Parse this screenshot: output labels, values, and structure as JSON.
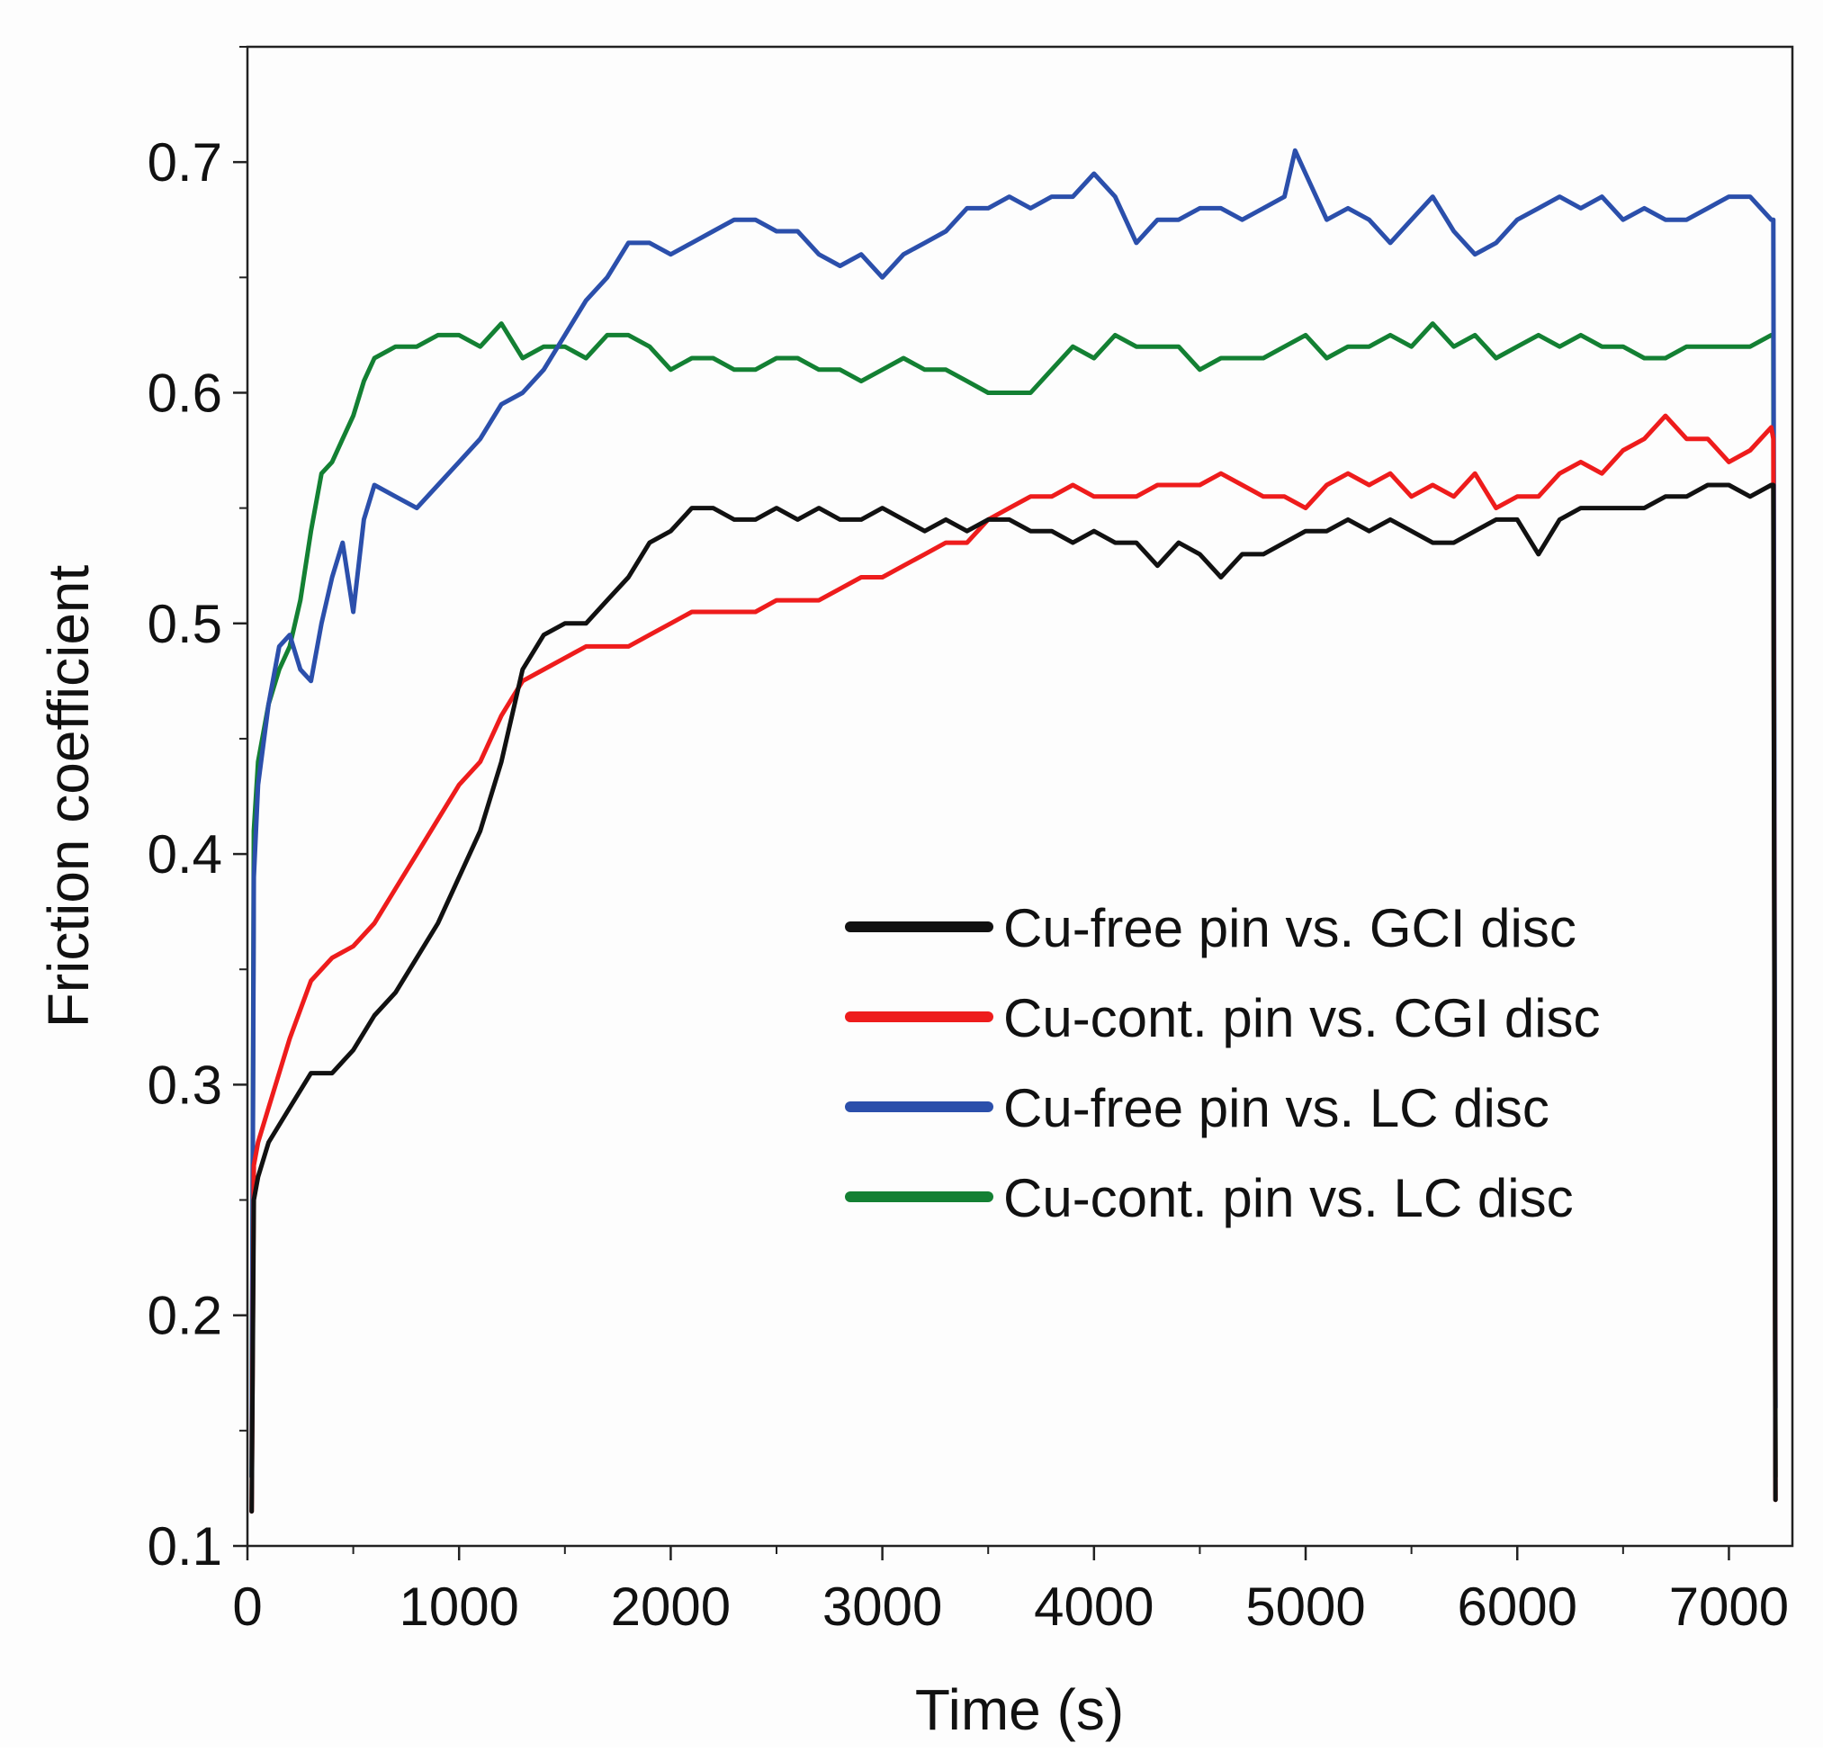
{
  "chart_data": {
    "type": "line",
    "title": "",
    "xlabel": "Time (s)",
    "ylabel": "Friction coefficient",
    "xlim": [
      0,
      7300
    ],
    "ylim": [
      0.1,
      0.75
    ],
    "xticks": [
      0,
      1000,
      2000,
      3000,
      4000,
      5000,
      6000,
      7000
    ],
    "xtick_labels": [
      "0",
      "1000",
      "2000",
      "3000",
      "4000",
      "5000",
      "6000",
      "7000"
    ],
    "yticks": [
      0.1,
      0.2,
      0.3,
      0.4,
      0.5,
      0.6,
      0.7
    ],
    "ytick_labels": [
      "0.1",
      "0.2",
      "0.3",
      "0.4",
      "0.5",
      "0.6",
      "0.7"
    ],
    "grid": false,
    "legend_position": "center-right",
    "series": [
      {
        "name": "Cu-free pin vs. GCI disc",
        "color": "#111111",
        "x": [
          20,
          30,
          50,
          100,
          200,
          300,
          400,
          500,
          600,
          700,
          800,
          900,
          1000,
          1100,
          1200,
          1300,
          1400,
          1500,
          1600,
          1700,
          1800,
          1900,
          2000,
          2100,
          2200,
          2300,
          2400,
          2500,
          2600,
          2700,
          2800,
          2900,
          3000,
          3100,
          3200,
          3300,
          3400,
          3500,
          3600,
          3700,
          3800,
          3900,
          4000,
          4100,
          4200,
          4300,
          4400,
          4500,
          4600,
          4700,
          4800,
          4900,
          5000,
          5100,
          5200,
          5300,
          5400,
          5500,
          5600,
          5700,
          5800,
          5900,
          6000,
          6100,
          6200,
          6300,
          6400,
          6500,
          6600,
          6700,
          6800,
          6900,
          7000,
          7100,
          7200,
          7210,
          7220
        ],
        "y": [
          0.115,
          0.25,
          0.26,
          0.275,
          0.29,
          0.305,
          0.305,
          0.315,
          0.33,
          0.34,
          0.355,
          0.37,
          0.39,
          0.41,
          0.44,
          0.48,
          0.495,
          0.5,
          0.5,
          0.51,
          0.52,
          0.535,
          0.54,
          0.55,
          0.55,
          0.545,
          0.545,
          0.55,
          0.545,
          0.55,
          0.545,
          0.545,
          0.55,
          0.545,
          0.54,
          0.545,
          0.54,
          0.545,
          0.545,
          0.54,
          0.54,
          0.535,
          0.54,
          0.535,
          0.535,
          0.525,
          0.535,
          0.53,
          0.52,
          0.53,
          0.53,
          0.535,
          0.54,
          0.54,
          0.545,
          0.54,
          0.545,
          0.54,
          0.535,
          0.535,
          0.54,
          0.545,
          0.545,
          0.53,
          0.545,
          0.55,
          0.55,
          0.55,
          0.55,
          0.555,
          0.555,
          0.56,
          0.56,
          0.555,
          0.56,
          0.56,
          0.12
        ]
      },
      {
        "name": "Cu-cont. pin vs. CGI disc",
        "color": "#ee1c1c",
        "x": [
          20,
          30,
          50,
          100,
          200,
          300,
          400,
          500,
          600,
          700,
          800,
          900,
          1000,
          1100,
          1200,
          1300,
          1400,
          1500,
          1600,
          1700,
          1800,
          1900,
          2000,
          2100,
          2200,
          2300,
          2400,
          2500,
          2600,
          2700,
          2800,
          2900,
          3000,
          3100,
          3200,
          3300,
          3400,
          3500,
          3600,
          3700,
          3800,
          3900,
          4000,
          4100,
          4200,
          4300,
          4400,
          4500,
          4600,
          4700,
          4800,
          4900,
          5000,
          5100,
          5200,
          5300,
          5400,
          5500,
          5600,
          5700,
          5800,
          5900,
          6000,
          6100,
          6200,
          6300,
          6400,
          6500,
          6600,
          6700,
          6800,
          6900,
          7000,
          7100,
          7200,
          7210,
          7220
        ],
        "y": [
          0.115,
          0.265,
          0.275,
          0.29,
          0.32,
          0.345,
          0.355,
          0.36,
          0.37,
          0.385,
          0.4,
          0.415,
          0.43,
          0.44,
          0.46,
          0.475,
          0.48,
          0.485,
          0.49,
          0.49,
          0.49,
          0.495,
          0.5,
          0.505,
          0.505,
          0.505,
          0.505,
          0.51,
          0.51,
          0.51,
          0.515,
          0.52,
          0.52,
          0.525,
          0.53,
          0.535,
          0.535,
          0.545,
          0.55,
          0.555,
          0.555,
          0.56,
          0.555,
          0.555,
          0.555,
          0.56,
          0.56,
          0.56,
          0.565,
          0.56,
          0.555,
          0.555,
          0.55,
          0.56,
          0.565,
          0.56,
          0.565,
          0.555,
          0.56,
          0.555,
          0.565,
          0.55,
          0.555,
          0.555,
          0.565,
          0.57,
          0.565,
          0.575,
          0.58,
          0.59,
          0.58,
          0.58,
          0.57,
          0.575,
          0.585,
          0.58,
          0.12
        ]
      },
      {
        "name": "Cu-free pin vs. LC disc",
        "color": "#2b4fab",
        "x": [
          20,
          30,
          50,
          100,
          150,
          200,
          250,
          300,
          350,
          400,
          450,
          500,
          550,
          600,
          700,
          800,
          900,
          1000,
          1100,
          1200,
          1300,
          1400,
          1500,
          1600,
          1700,
          1800,
          1900,
          2000,
          2100,
          2200,
          2300,
          2400,
          2500,
          2600,
          2700,
          2800,
          2900,
          3000,
          3100,
          3200,
          3300,
          3400,
          3500,
          3600,
          3700,
          3800,
          3900,
          4000,
          4100,
          4200,
          4300,
          4400,
          4500,
          4600,
          4700,
          4800,
          4900,
          4950,
          5000,
          5100,
          5200,
          5300,
          5400,
          5500,
          5600,
          5700,
          5800,
          5900,
          6000,
          6100,
          6200,
          6300,
          6400,
          6500,
          6600,
          6700,
          6800,
          6900,
          7000,
          7100,
          7200,
          7210,
          7220
        ],
        "y": [
          0.13,
          0.39,
          0.43,
          0.465,
          0.49,
          0.495,
          0.48,
          0.475,
          0.5,
          0.52,
          0.535,
          0.505,
          0.545,
          0.56,
          0.555,
          0.55,
          0.56,
          0.57,
          0.58,
          0.595,
          0.6,
          0.61,
          0.625,
          0.64,
          0.65,
          0.665,
          0.665,
          0.66,
          0.665,
          0.67,
          0.675,
          0.675,
          0.67,
          0.67,
          0.66,
          0.655,
          0.66,
          0.65,
          0.66,
          0.665,
          0.67,
          0.68,
          0.68,
          0.685,
          0.68,
          0.685,
          0.685,
          0.695,
          0.685,
          0.665,
          0.675,
          0.675,
          0.68,
          0.68,
          0.675,
          0.68,
          0.685,
          0.705,
          0.695,
          0.675,
          0.68,
          0.675,
          0.665,
          0.675,
          0.685,
          0.67,
          0.66,
          0.665,
          0.675,
          0.68,
          0.685,
          0.68,
          0.685,
          0.675,
          0.68,
          0.675,
          0.675,
          0.68,
          0.685,
          0.685,
          0.675,
          0.675,
          0.16
        ]
      },
      {
        "name": "Cu-cont. pin vs. LC disc",
        "color": "#138033",
        "x": [
          20,
          30,
          50,
          100,
          150,
          200,
          250,
          300,
          350,
          400,
          450,
          500,
          550,
          600,
          700,
          800,
          900,
          1000,
          1100,
          1200,
          1300,
          1400,
          1500,
          1600,
          1700,
          1800,
          1900,
          2000,
          2100,
          2200,
          2300,
          2400,
          2500,
          2600,
          2700,
          2800,
          2900,
          3000,
          3100,
          3200,
          3300,
          3400,
          3500,
          3600,
          3700,
          3800,
          3900,
          4000,
          4100,
          4200,
          4300,
          4400,
          4500,
          4600,
          4700,
          4800,
          4900,
          5000,
          5100,
          5200,
          5300,
          5400,
          5500,
          5600,
          5700,
          5800,
          5900,
          6000,
          6100,
          6200,
          6300,
          6400,
          6500,
          6600,
          6700,
          6800,
          6900,
          7000,
          7100,
          7200,
          7210,
          7220
        ],
        "y": [
          0.13,
          0.41,
          0.44,
          0.465,
          0.48,
          0.49,
          0.51,
          0.54,
          0.565,
          0.57,
          0.58,
          0.59,
          0.605,
          0.615,
          0.62,
          0.62,
          0.625,
          0.625,
          0.62,
          0.63,
          0.615,
          0.62,
          0.62,
          0.615,
          0.625,
          0.625,
          0.62,
          0.61,
          0.615,
          0.615,
          0.61,
          0.61,
          0.615,
          0.615,
          0.61,
          0.61,
          0.605,
          0.61,
          0.615,
          0.61,
          0.61,
          0.605,
          0.6,
          0.6,
          0.6,
          0.61,
          0.62,
          0.615,
          0.625,
          0.62,
          0.62,
          0.62,
          0.61,
          0.615,
          0.615,
          0.615,
          0.62,
          0.625,
          0.615,
          0.62,
          0.62,
          0.625,
          0.62,
          0.63,
          0.62,
          0.625,
          0.615,
          0.62,
          0.625,
          0.62,
          0.625,
          0.62,
          0.62,
          0.615,
          0.615,
          0.62,
          0.62,
          0.62,
          0.62,
          0.625,
          0.625,
          0.13
        ]
      }
    ]
  }
}
